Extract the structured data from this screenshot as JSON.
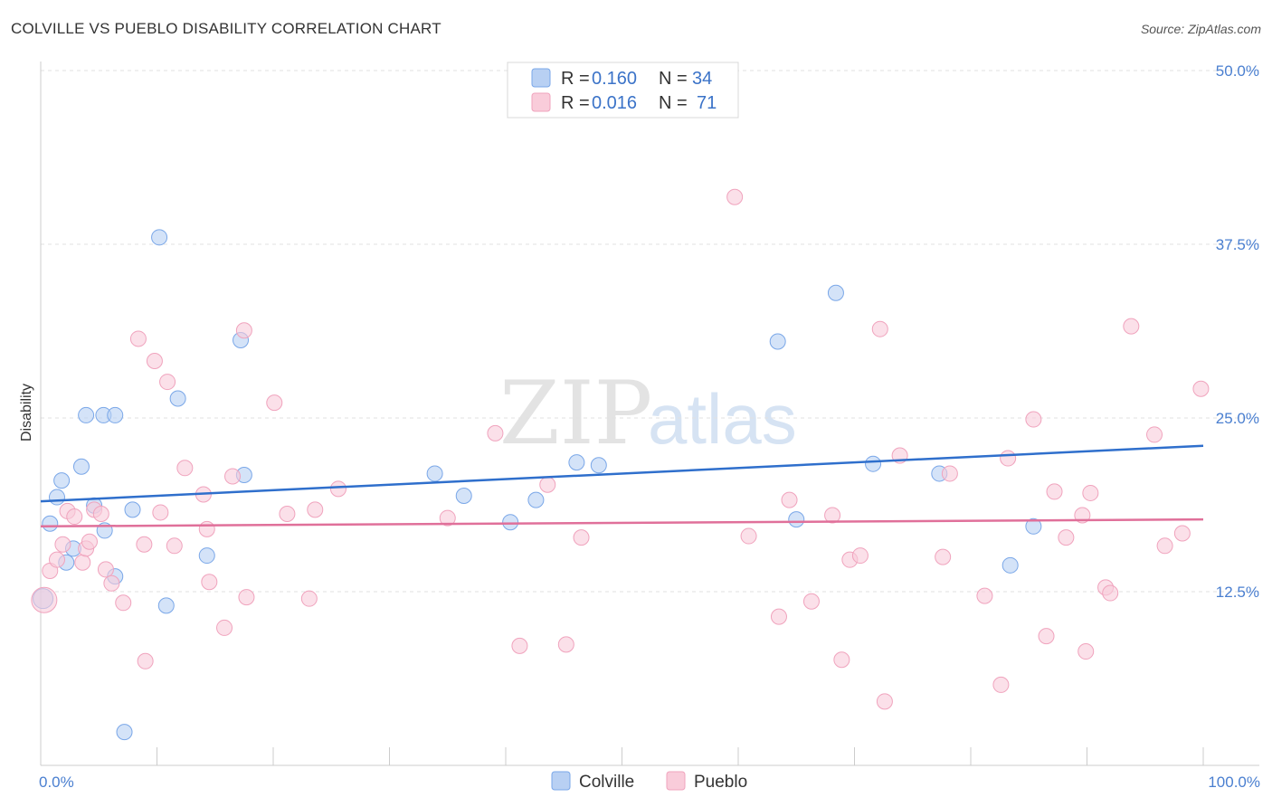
{
  "header": {
    "title": "COLVILLE VS PUEBLO DISABILITY CORRELATION CHART",
    "source": "Source: ZipAtlas.com"
  },
  "watermark": {
    "zip": "ZIP",
    "atlas": "atlas"
  },
  "chart_data": {
    "type": "scatter",
    "title": "COLVILLE VS PUEBLO DISABILITY CORRELATION CHART",
    "xlabel": "",
    "ylabel": "Disability",
    "xlim": [
      0,
      100
    ],
    "ylim": [
      0,
      50
    ],
    "x_tick_labels": [
      {
        "value": 0,
        "label": "0.0%"
      },
      {
        "value": 100,
        "label": "100.0%"
      }
    ],
    "y_tick_labels": [
      {
        "value": 12.5,
        "label": "12.5%"
      },
      {
        "value": 25.0,
        "label": "25.0%"
      },
      {
        "value": 37.5,
        "label": "37.5%"
      },
      {
        "value": 50.0,
        "label": "50.0%"
      }
    ],
    "grid": true,
    "legend": {
      "placement": "top-center",
      "entries": [
        {
          "name": "Colville",
          "r_label": "R =",
          "r": "0.160",
          "n_label": "N =",
          "n": "34"
        },
        {
          "name": "Pueblo",
          "r_label": "R =",
          "r": "0.016",
          "n_label": "N =",
          "n": "71"
        }
      ]
    },
    "series": [
      {
        "name": "Colville",
        "color": "#7aa7e8",
        "fill": "#b8d0f3",
        "trend": {
          "x": [
            0,
            100
          ],
          "y": [
            19.0,
            23.0
          ],
          "color": "#2f6fcc"
        },
        "points": [
          [
            0.2,
            12.0
          ],
          [
            0.8,
            17.4
          ],
          [
            1.4,
            19.3
          ],
          [
            1.8,
            20.5
          ],
          [
            2.2,
            14.6
          ],
          [
            2.8,
            15.6
          ],
          [
            3.5,
            21.5
          ],
          [
            3.9,
            25.2
          ],
          [
            4.6,
            18.7
          ],
          [
            5.5,
            16.9
          ],
          [
            5.4,
            25.2
          ],
          [
            6.4,
            25.2
          ],
          [
            6.4,
            13.6
          ],
          [
            7.2,
            2.4
          ],
          [
            7.9,
            18.4
          ],
          [
            10.2,
            38.0
          ],
          [
            10.8,
            11.5
          ],
          [
            11.8,
            26.4
          ],
          [
            14.3,
            15.1
          ],
          [
            17.2,
            30.6
          ],
          [
            17.5,
            20.9
          ],
          [
            33.9,
            21.0
          ],
          [
            36.4,
            19.4
          ],
          [
            40.4,
            17.5
          ],
          [
            42.6,
            19.1
          ],
          [
            46.1,
            21.8
          ],
          [
            48.0,
            21.6
          ],
          [
            63.4,
            30.5
          ],
          [
            65.0,
            17.7
          ],
          [
            68.4,
            34.0
          ],
          [
            71.6,
            21.7
          ],
          [
            77.3,
            21.0
          ],
          [
            83.4,
            14.4
          ],
          [
            85.4,
            17.2
          ]
        ]
      },
      {
        "name": "Pueblo",
        "color": "#f0a3bd",
        "fill": "#f9ccda",
        "trend": {
          "x": [
            0,
            100
          ],
          "y": [
            17.2,
            17.7
          ],
          "color": "#e0709a"
        },
        "points": [
          [
            0.3,
            11.9
          ],
          [
            0.8,
            14.0
          ],
          [
            1.4,
            14.8
          ],
          [
            1.9,
            15.9
          ],
          [
            2.3,
            18.3
          ],
          [
            2.9,
            17.9
          ],
          [
            3.6,
            14.6
          ],
          [
            3.9,
            15.6
          ],
          [
            4.2,
            16.1
          ],
          [
            4.6,
            18.4
          ],
          [
            5.2,
            18.1
          ],
          [
            5.6,
            14.1
          ],
          [
            6.1,
            13.1
          ],
          [
            7.1,
            11.7
          ],
          [
            8.4,
            30.7
          ],
          [
            8.9,
            15.9
          ],
          [
            9.0,
            7.5
          ],
          [
            9.8,
            29.1
          ],
          [
            10.3,
            18.2
          ],
          [
            10.9,
            27.6
          ],
          [
            11.5,
            15.8
          ],
          [
            12.4,
            21.4
          ],
          [
            14.0,
            19.5
          ],
          [
            14.3,
            17.0
          ],
          [
            14.5,
            13.2
          ],
          [
            15.8,
            9.9
          ],
          [
            16.5,
            20.8
          ],
          [
            17.5,
            31.3
          ],
          [
            17.7,
            12.1
          ],
          [
            20.1,
            26.1
          ],
          [
            21.2,
            18.1
          ],
          [
            23.1,
            12.0
          ],
          [
            23.6,
            18.4
          ],
          [
            25.6,
            19.9
          ],
          [
            35.0,
            17.8
          ],
          [
            39.1,
            23.9
          ],
          [
            41.2,
            8.6
          ],
          [
            43.6,
            20.2
          ],
          [
            45.2,
            8.7
          ],
          [
            46.5,
            16.4
          ],
          [
            59.7,
            40.9
          ],
          [
            60.9,
            16.5
          ],
          [
            63.5,
            10.7
          ],
          [
            64.4,
            19.1
          ],
          [
            66.3,
            11.8
          ],
          [
            68.1,
            18.0
          ],
          [
            68.9,
            7.6
          ],
          [
            69.6,
            14.8
          ],
          [
            70.5,
            15.1
          ],
          [
            72.2,
            31.4
          ],
          [
            72.6,
            4.6
          ],
          [
            73.9,
            22.3
          ],
          [
            77.6,
            15.0
          ],
          [
            78.2,
            21.0
          ],
          [
            81.2,
            12.2
          ],
          [
            82.6,
            5.8
          ],
          [
            83.2,
            22.1
          ],
          [
            85.4,
            24.9
          ],
          [
            86.5,
            9.3
          ],
          [
            87.2,
            19.7
          ],
          [
            88.2,
            16.4
          ],
          [
            89.6,
            18.0
          ],
          [
            89.9,
            8.2
          ],
          [
            90.3,
            19.6
          ],
          [
            91.6,
            12.8
          ],
          [
            92.0,
            12.4
          ],
          [
            93.8,
            31.6
          ],
          [
            95.8,
            23.8
          ],
          [
            96.7,
            15.8
          ],
          [
            98.2,
            16.7
          ],
          [
            99.8,
            27.1
          ]
        ]
      }
    ]
  }
}
